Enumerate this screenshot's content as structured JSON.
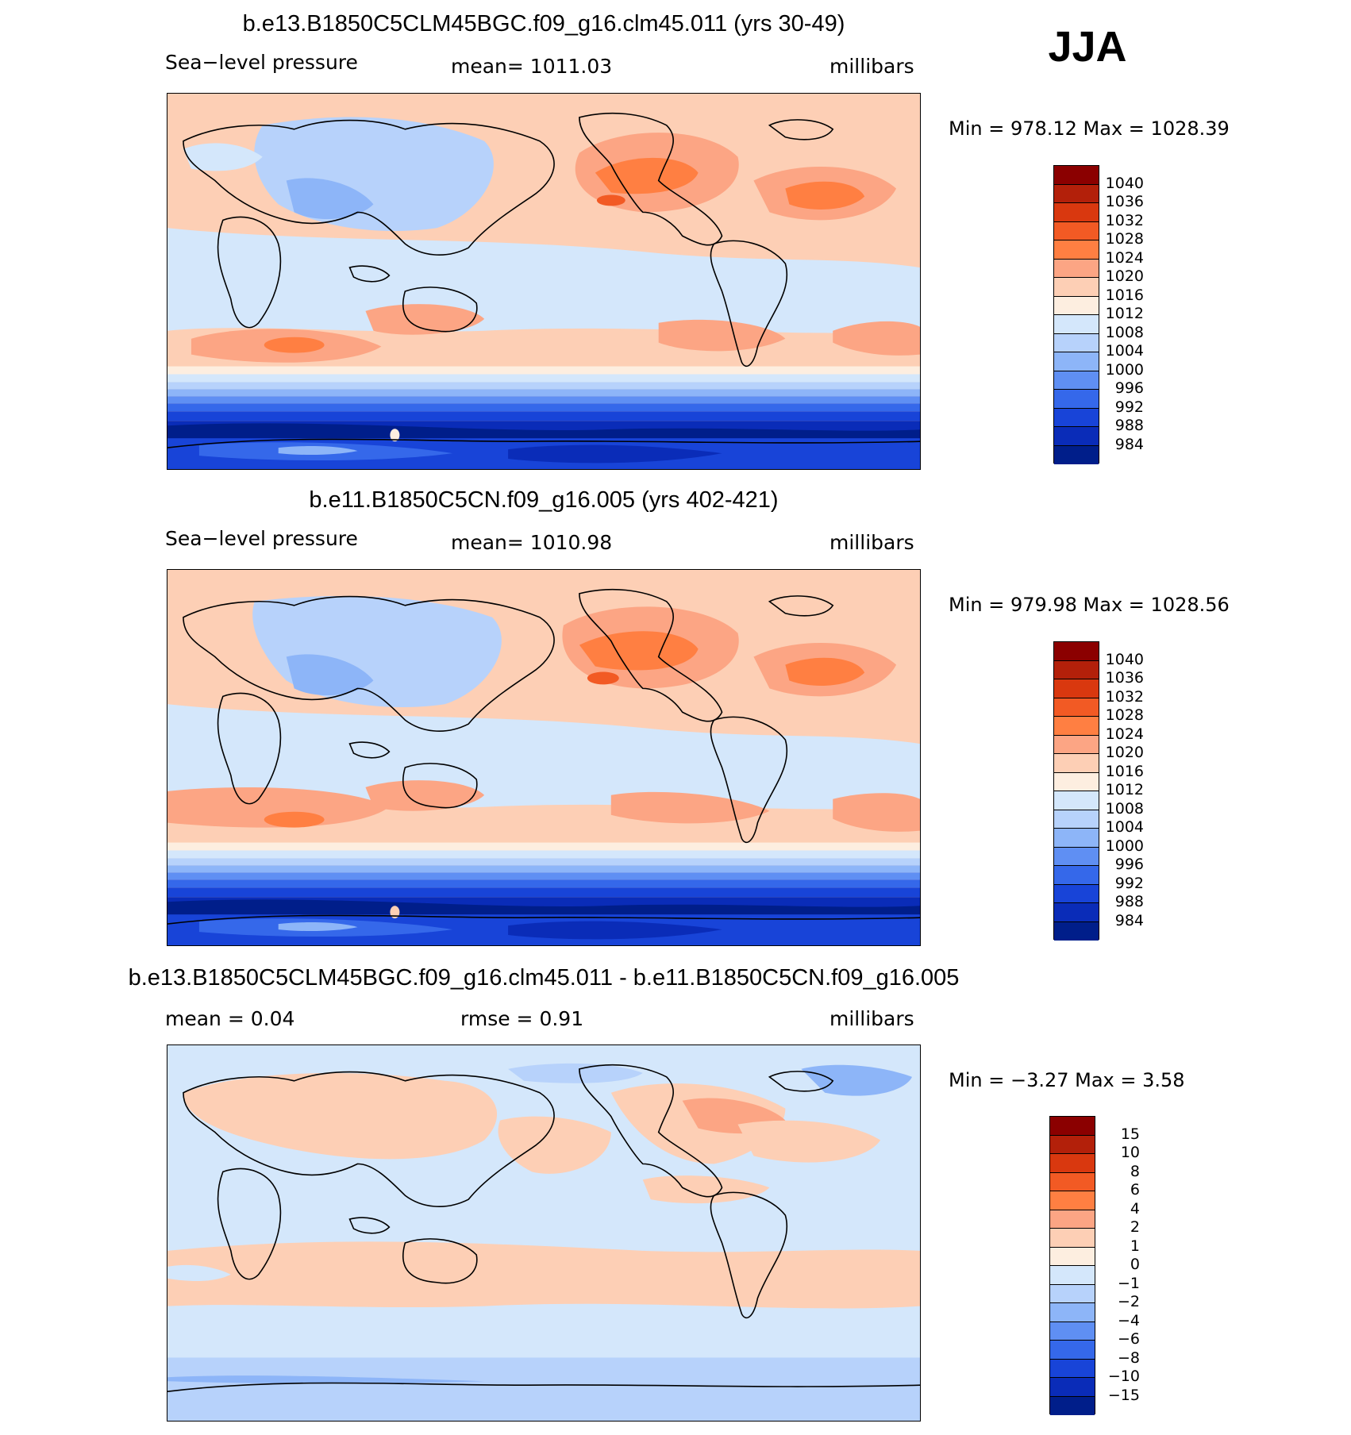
{
  "season": "JJA",
  "panels": [
    {
      "title": "b.e13.B1850C5CLM45BGC.f09_g16.clm45.011 (yrs 30-49)",
      "left_text": "Sea−level pressure",
      "center_text": "mean=  1011.03",
      "right_text": "millibars",
      "minmax": "Min  =  978.12  Max  =  1028.39",
      "legend_labels": [
        "1040",
        "1036",
        "1032",
        "1028",
        "1024",
        "1020",
        "1016",
        "1012",
        "1008",
        "1004",
        "1000",
        "996",
        "992",
        "988",
        "984"
      ]
    },
    {
      "title": "b.e11.B1850C5CN.f09_g16.005 (yrs 402-421)",
      "left_text": "Sea−level pressure",
      "center_text": "mean=  1010.98",
      "right_text": "millibars",
      "minmax": "Min  =  979.98  Max  =  1028.56",
      "legend_labels": [
        "1040",
        "1036",
        "1032",
        "1028",
        "1024",
        "1020",
        "1016",
        "1012",
        "1008",
        "1004",
        "1000",
        "996",
        "992",
        "988",
        "984"
      ]
    },
    {
      "title": "b.e13.B1850C5CLM45BGC.f09_g16.clm45.011 - b.e11.B1850C5CN.f09_g16.005",
      "left_text": "mean  =     0.04",
      "center_text": "rmse  =      0.91",
      "right_text": "millibars",
      "minmax": "Min  =    −3.27  Max  =      3.58",
      "legend_labels": [
        "15",
        "10",
        "8",
        "6",
        "4",
        "2",
        "1",
        "0",
        "−1",
        "−2",
        "−4",
        "−6",
        "−8",
        "−10",
        "−15"
      ]
    }
  ],
  "colors": {
    "abs_scale": [
      "#8b0000",
      "#b3200a",
      "#d9380f",
      "#f25a24",
      "#ff7f42",
      "#fca584",
      "#fdcfb5",
      "#fdeee0",
      "#d4e7fb",
      "#b7d2fb",
      "#8db5f8",
      "#5f8ff3",
      "#3568ea",
      "#1844d8",
      "#0a2cb8",
      "#001e8a"
    ],
    "diff_scale": [
      "#8b0000",
      "#b3200a",
      "#d9380f",
      "#f25a24",
      "#ff7f42",
      "#fca584",
      "#fdcfb5",
      "#fdeee0",
      "#d4e7fb",
      "#b7d2fb",
      "#8db5f8",
      "#5f8ff3",
      "#3568ea",
      "#1844d8",
      "#0a2cb8",
      "#001e8a"
    ]
  }
}
